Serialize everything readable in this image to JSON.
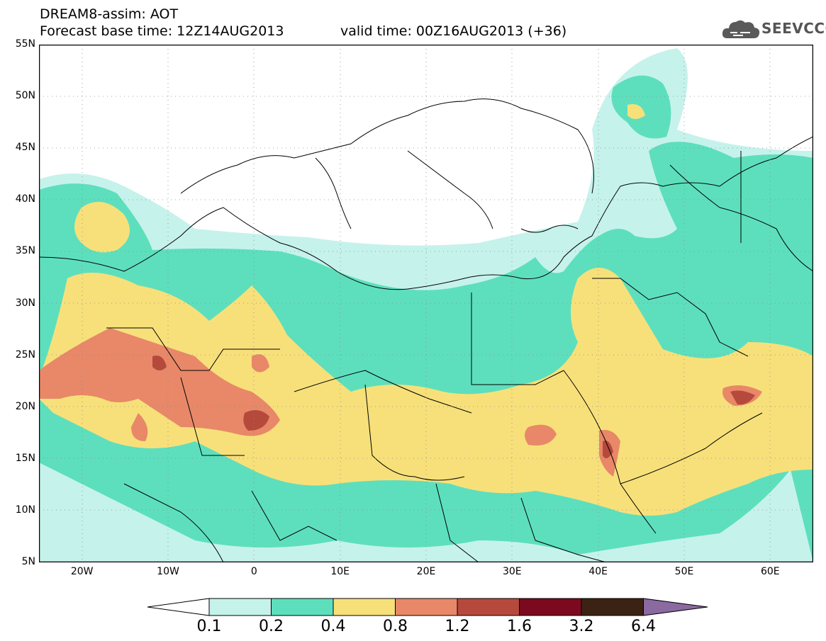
{
  "header": {
    "title_line1": "DREAM8-assim: AOT",
    "title_line2_left": "Forecast base time: 12Z14AUG2013",
    "title_line2_right": "valid time: 00Z16AUG2013 (+36)"
  },
  "logo": {
    "text": "SEEVCCC",
    "icon": "cloud-icon"
  },
  "map": {
    "extent": {
      "lon": [
        -25,
        65
      ],
      "lat": [
        5,
        55
      ]
    },
    "grid": true,
    "y_ticks": [
      {
        "lat": 55,
        "label": "55N"
      },
      {
        "lat": 50,
        "label": "50N"
      },
      {
        "lat": 45,
        "label": "45N"
      },
      {
        "lat": 40,
        "label": "40N"
      },
      {
        "lat": 35,
        "label": "35N"
      },
      {
        "lat": 30,
        "label": "30N"
      },
      {
        "lat": 25,
        "label": "25N"
      },
      {
        "lat": 20,
        "label": "20N"
      },
      {
        "lat": 15,
        "label": "15N"
      },
      {
        "lat": 10,
        "label": "10N"
      },
      {
        "lat": 5,
        "label": "5N"
      }
    ],
    "x_ticks": [
      {
        "lon": -20,
        "label": "20W"
      },
      {
        "lon": -10,
        "label": "10W"
      },
      {
        "lon": 0,
        "label": "0"
      },
      {
        "lon": 10,
        "label": "10E"
      },
      {
        "lon": 20,
        "label": "20E"
      },
      {
        "lon": 30,
        "label": "30E"
      },
      {
        "lon": 40,
        "label": "40E"
      },
      {
        "lon": 50,
        "label": "50E"
      },
      {
        "lon": 60,
        "label": "60E"
      }
    ]
  },
  "colorbar": {
    "levels": [
      "0.1",
      "0.2",
      "0.4",
      "0.8",
      "1.2",
      "1.6",
      "3.2",
      "6.4"
    ],
    "colors": [
      "#ffffff",
      "#c6f2ec",
      "#5ddfbd",
      "#f7e07a",
      "#e88868",
      "#b54a3c",
      "#7b0a1e",
      "#3c2214",
      "#8a6aa0"
    ]
  }
}
